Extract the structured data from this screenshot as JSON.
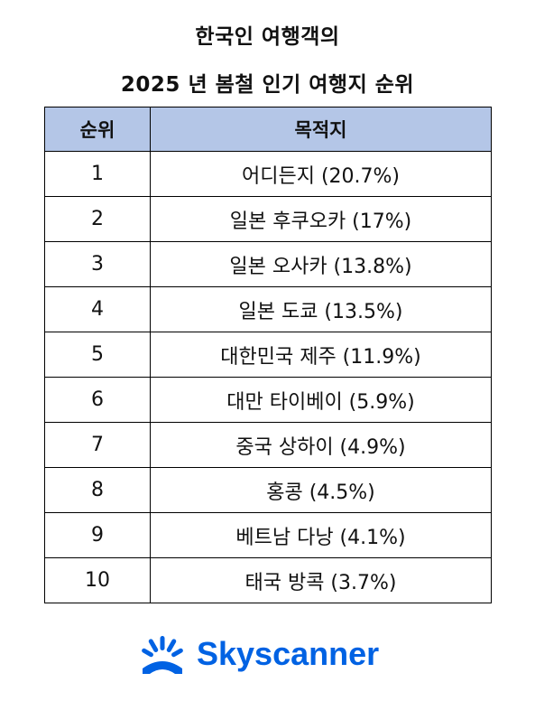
{
  "title": {
    "line1": "한국인 여행객의",
    "line2": "2025 년 봄철 인기 여행지 순위"
  },
  "table": {
    "headers": {
      "rank": "순위",
      "destination": "목적지"
    },
    "rows": [
      {
        "rank": "1",
        "destination": "어디든지 (20.7%)"
      },
      {
        "rank": "2",
        "destination": "일본 후쿠오카 (17%)"
      },
      {
        "rank": "3",
        "destination": "일본 오사카 (13.8%)"
      },
      {
        "rank": "4",
        "destination": "일본 도쿄 (13.5%)"
      },
      {
        "rank": "5",
        "destination": "대한민국 제주 (11.9%)"
      },
      {
        "rank": "6",
        "destination": "대만 타이베이 (5.9%)"
      },
      {
        "rank": "7",
        "destination": "중국 상하이 (4.9%)"
      },
      {
        "rank": "8",
        "destination": "홍콩 (4.5%)"
      },
      {
        "rank": "9",
        "destination": "베트남 다낭 (4.1%)"
      },
      {
        "rank": "10",
        "destination": "태국 방콕 (3.7%)"
      }
    ]
  },
  "logo": {
    "text": "Skyscanner",
    "icon": "sunrise-icon",
    "color": "#0062e3"
  },
  "colors": {
    "header_background": "#b4c6e7",
    "border": "#000000"
  }
}
